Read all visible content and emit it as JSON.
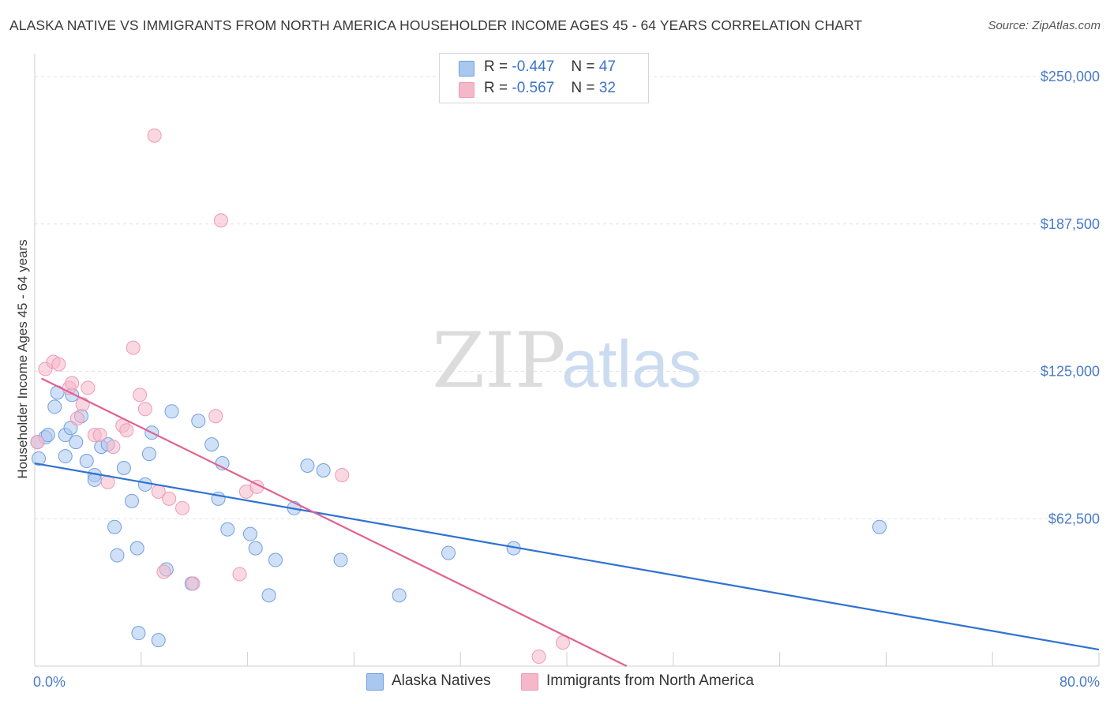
{
  "title": "ALASKA NATIVE VS IMMIGRANTS FROM NORTH AMERICA HOUSEHOLDER INCOME AGES 45 - 64 YEARS CORRELATION CHART",
  "source": "Source: ZipAtlas.com",
  "watermark": {
    "zip": "ZIP",
    "atlas": "atlas"
  },
  "legend": {
    "rows": [
      {
        "r_label": "R = ",
        "r_value": "-0.447",
        "n_label": "N = ",
        "n_value": "47",
        "color": "#a9c7ef"
      },
      {
        "r_label": "R = ",
        "r_value": "-0.567",
        "n_label": "N = ",
        "n_value": "32",
        "color": "#f5b8cb"
      }
    ]
  },
  "bottom_legend": [
    {
      "label": "Alaska Natives",
      "color": "#a9c7ef"
    },
    {
      "label": "Immigrants from North America",
      "color": "#f5b8cb"
    }
  ],
  "chart_data": {
    "type": "scatter",
    "ylabel": "Householder Income Ages 45 - 64 years",
    "xlim": [
      0,
      80
    ],
    "ylim": [
      0,
      250000
    ],
    "x_tick_labels": [
      "0.0%",
      "80.0%"
    ],
    "y_ticks": [
      62500,
      125000,
      187500,
      250000
    ],
    "y_tick_labels": [
      "$62,500",
      "$125,000",
      "$187,500",
      "$250,000"
    ],
    "grid": true,
    "series": [
      {
        "name": "Alaska Natives",
        "color": "#6fa0e0",
        "fill": "#a9c7ef",
        "trend": {
          "x": [
            0,
            80
          ],
          "y": [
            86000,
            7000
          ],
          "color": "#2f72d0"
        },
        "points": [
          [
            0.3,
            88000
          ],
          [
            0.8,
            97000
          ],
          [
            1.0,
            98000
          ],
          [
            1.5,
            110000
          ],
          [
            1.7,
            116000
          ],
          [
            2.3,
            98000
          ],
          [
            2.3,
            89000
          ],
          [
            2.7,
            101000
          ],
          [
            2.8,
            115000
          ],
          [
            3.1,
            95000
          ],
          [
            3.5,
            106000
          ],
          [
            3.9,
            87000
          ],
          [
            4.5,
            81000
          ],
          [
            4.5,
            79000
          ],
          [
            5.0,
            93000
          ],
          [
            5.5,
            94000
          ],
          [
            6.0,
            59000
          ],
          [
            6.2,
            47000
          ],
          [
            6.7,
            84000
          ],
          [
            7.3,
            70000
          ],
          [
            7.7,
            50000
          ],
          [
            7.8,
            14000
          ],
          [
            8.3,
            77000
          ],
          [
            8.6,
            90000
          ],
          [
            8.8,
            99000
          ],
          [
            9.3,
            11000
          ],
          [
            9.9,
            41000
          ],
          [
            10.3,
            108000
          ],
          [
            11.8,
            35000
          ],
          [
            12.3,
            104000
          ],
          [
            13.3,
            94000
          ],
          [
            13.8,
            71000
          ],
          [
            14.1,
            86000
          ],
          [
            14.5,
            58000
          ],
          [
            16.2,
            56000
          ],
          [
            16.6,
            50000
          ],
          [
            17.6,
            30000
          ],
          [
            18.1,
            45000
          ],
          [
            19.5,
            67000
          ],
          [
            20.5,
            85000
          ],
          [
            21.7,
            83000
          ],
          [
            23.0,
            45000
          ],
          [
            27.4,
            30000
          ],
          [
            31.1,
            48000
          ],
          [
            36.0,
            50000
          ],
          [
            63.5,
            59000
          ],
          [
            0.2,
            95000
          ]
        ]
      },
      {
        "name": "Immigrants from North America",
        "color": "#ee9ab6",
        "fill": "#f5b8cb",
        "trend": {
          "x": [
            0.5,
            44.5
          ],
          "y": [
            122000,
            0
          ],
          "color": "#e0628f"
        },
        "points": [
          [
            0.2,
            95000
          ],
          [
            0.8,
            126000
          ],
          [
            1.4,
            129000
          ],
          [
            1.8,
            128000
          ],
          [
            2.6,
            118000
          ],
          [
            2.8,
            120000
          ],
          [
            3.2,
            105000
          ],
          [
            3.6,
            111000
          ],
          [
            4.0,
            118000
          ],
          [
            4.5,
            98000
          ],
          [
            4.9,
            98000
          ],
          [
            5.5,
            78000
          ],
          [
            5.9,
            93000
          ],
          [
            6.6,
            102000
          ],
          [
            6.9,
            100000
          ],
          [
            7.4,
            135000
          ],
          [
            7.9,
            115000
          ],
          [
            8.3,
            109000
          ],
          [
            9.0,
            225000
          ],
          [
            9.3,
            74000
          ],
          [
            9.7,
            40000
          ],
          [
            10.1,
            71000
          ],
          [
            11.1,
            67000
          ],
          [
            11.9,
            35000
          ],
          [
            13.6,
            106000
          ],
          [
            14.0,
            189000
          ],
          [
            15.4,
            39000
          ],
          [
            15.9,
            74000
          ],
          [
            16.7,
            76000
          ],
          [
            23.1,
            81000
          ],
          [
            37.9,
            4000
          ],
          [
            39.7,
            10000
          ]
        ]
      }
    ]
  }
}
